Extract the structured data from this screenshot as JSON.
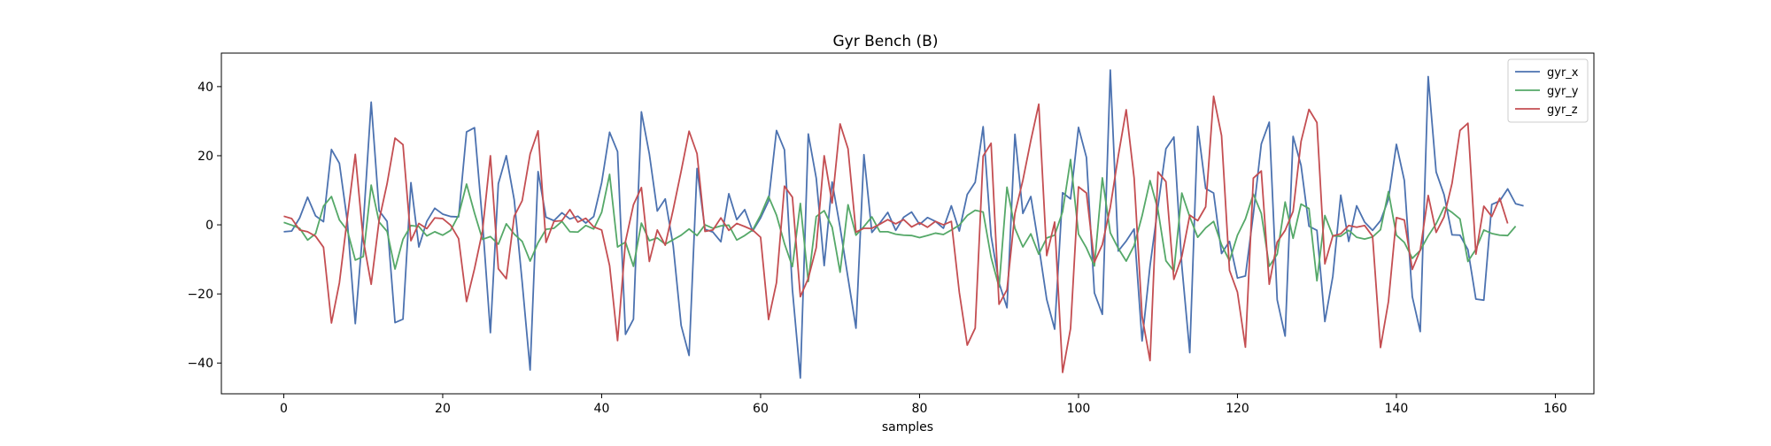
{
  "chart_data": {
    "type": "line",
    "title": "Gyr Bench (B)",
    "xlabel": "samples",
    "ylabel": "",
    "xlim": [
      -7.85,
      164.85
    ],
    "ylim": [
      -48.9,
      49.7
    ],
    "xticks": [
      0,
      20,
      40,
      60,
      80,
      100,
      120,
      140,
      160
    ],
    "yticks": [
      -40,
      -20,
      0,
      20,
      40
    ],
    "grid": false,
    "legend_position": "top-right",
    "series": [
      {
        "name": "gyr_x",
        "color": "#4c72b0",
        "values": [
          -2.0,
          -1.8,
          2.0,
          8.0,
          2.6,
          0.9,
          21.8,
          17.8,
          1.0,
          -28.6,
          -0.1,
          35.5,
          4.1,
          1.0,
          -28.3,
          -27.3,
          12.2,
          -6.4,
          1.0,
          4.8,
          3.1,
          2.4,
          2.3,
          26.9,
          28.1,
          1.0,
          -31.2,
          11.9,
          20.0,
          7.2,
          -16.6,
          -42.0,
          15.4,
          2.2,
          1.2,
          3.5,
          1.7,
          2.5,
          0.5,
          2.4,
          12.2,
          26.8,
          21.2,
          -31.7,
          -27.3,
          32.7,
          20.5,
          4.0,
          7.5,
          -6.0,
          -29.1,
          -37.8,
          16.3,
          -1.3,
          -2.1,
          -4.9,
          9.0,
          1.5,
          4.4,
          -1.8,
          2.0,
          6.9,
          27.3,
          21.7,
          -18.7,
          -44.3,
          26.3,
          13.5,
          -11.8,
          12.4,
          -0.7,
          -15.4,
          -29.9,
          20.3,
          -2.2,
          0.5,
          3.6,
          -1.6,
          2.2,
          3.7,
          0.1,
          2.1,
          1.0,
          -1.0,
          5.5,
          -1.8,
          8.8,
          12.3,
          28.4,
          -3.2,
          -16.8,
          -24.0,
          26.2,
          3.3,
          8.2,
          -6.1,
          -21.6,
          -30.2,
          9.3,
          7.5,
          28.2,
          19.5,
          -19.7,
          -25.9,
          44.8,
          -7.6,
          -4.7,
          -1.2,
          -33.6,
          -11.9,
          5.3,
          22.0,
          25.4,
          -11.8,
          -37.0,
          28.5,
          10.5,
          9.2,
          -8.3,
          -4.8,
          -15.4,
          -14.8,
          3.1,
          23.4,
          29.7,
          -21.7,
          -32.2,
          25.6,
          17.2,
          -0.4,
          -1.6,
          -28.0,
          -14.9,
          8.6,
          -4.8,
          5.5,
          0.8,
          -1.6,
          1.2,
          7.4,
          23.3,
          12.8,
          -20.8,
          -30.9,
          42.9,
          15.3,
          8.7,
          -2.9,
          -3.0,
          -7.2,
          -21.5,
          -21.8,
          5.9,
          6.9,
          10.4,
          6.1,
          5.5
        ]
      },
      {
        "name": "gyr_y",
        "color": "#55a868",
        "values": [
          0.7,
          -0.1,
          -1.0,
          -4.4,
          -2.6,
          5.4,
          8.2,
          1.4,
          -1.6,
          -10.2,
          -9.2,
          11.5,
          0.8,
          -1.9,
          -12.8,
          -4.2,
          -0.2,
          -0.5,
          -3.2,
          -2.0,
          -3.0,
          -1.6,
          2.8,
          11.8,
          3.4,
          -4.2,
          -3.4,
          -5.6,
          0.3,
          -2.7,
          -4.8,
          -10.5,
          -5.2,
          -1.3,
          -1.0,
          1.0,
          -2.0,
          -2.1,
          -0.2,
          -1.2,
          3.6,
          14.6,
          -6.4,
          -5.0,
          -12.0,
          0.5,
          -4.6,
          -3.8,
          -5.6,
          -4.3,
          -3.0,
          -1.2,
          -3.1,
          0.0,
          -1.0,
          -0.3,
          -0.1,
          -4.4,
          -3.1,
          -1.5,
          2.8,
          8.2,
          2.8,
          -5.4,
          -12.1,
          6.2,
          -16.4,
          2.4,
          4.1,
          -0.7,
          -13.7,
          5.8,
          -3.0,
          -0.5,
          2.3,
          -2.0,
          -2.0,
          -2.7,
          -3.0,
          -3.1,
          -3.7,
          -3.1,
          -2.4,
          -2.8,
          -1.5,
          -0.1,
          2.7,
          4.2,
          3.7,
          -9.4,
          -18.0,
          10.9,
          -1.0,
          -6.4,
          -2.6,
          -8.5,
          -3.8,
          -3.0,
          3.8,
          18.9,
          -2.7,
          -6.7,
          -11.9,
          13.6,
          -2.3,
          -6.8,
          -10.5,
          -6.0,
          2.6,
          12.8,
          4.3,
          -10.4,
          -13.4,
          9.2,
          2.3,
          -3.6,
          -0.9,
          1.0,
          -5.8,
          -10.4,
          -3.0,
          1.7,
          8.9,
          3.3,
          -12.0,
          -8.5,
          6.6,
          -3.9,
          6.0,
          4.7,
          -16.2,
          2.7,
          -3.2,
          -3.3,
          -1.6,
          -3.6,
          -4.1,
          -3.5,
          -1.4,
          9.6,
          -3.0,
          -5.1,
          -9.7,
          -7.4,
          -3.2,
          0.3,
          5.1,
          3.6,
          1.7,
          -10.6,
          -7.1,
          -1.5,
          -2.5,
          -3.0,
          -3.1,
          -0.4
        ]
      },
      {
        "name": "gyr_z",
        "color": "#c44e52",
        "values": [
          2.5,
          1.8,
          -1.5,
          -2.0,
          -3.3,
          -6.5,
          -28.4,
          -16.8,
          2.0,
          20.4,
          -4.3,
          -17.2,
          1.3,
          11.9,
          25.1,
          23.2,
          -4.6,
          0.4,
          -1.1,
          2.0,
          1.8,
          -0.1,
          -4.0,
          -22.2,
          -12.7,
          -1.9,
          20.0,
          -12.7,
          -15.6,
          2.5,
          7.0,
          20.5,
          27.2,
          -5.1,
          1.0,
          1.2,
          4.4,
          0.8,
          1.9,
          -0.6,
          -1.5,
          -11.8,
          -33.5,
          -4.8,
          5.8,
          10.8,
          -10.6,
          -1.5,
          -5.9,
          4.4,
          15.5,
          27.1,
          20.6,
          -1.9,
          -1.5,
          2.0,
          -1.6,
          0.4,
          -0.5,
          -1.5,
          -3.6,
          -27.4,
          -16.7,
          11.2,
          8.0,
          -20.8,
          -15.5,
          -6.6,
          20.0,
          6.3,
          29.2,
          22.0,
          -2.1,
          -1.0,
          -1.0,
          0.2,
          1.5,
          0.3,
          1.5,
          -0.6,
          0.6,
          -0.7,
          1.0,
          0.0,
          1.0,
          -19.5,
          -34.8,
          -29.9,
          19.9,
          23.6,
          -23.0,
          -18.8,
          3.3,
          12.9,
          24.4,
          34.9,
          -8.9,
          0.8,
          -42.7,
          -30.0,
          11.0,
          9.2,
          -10.8,
          -5.7,
          5.1,
          19.9,
          33.3,
          13.5,
          -26.5,
          -39.3,
          15.3,
          12.5,
          -15.8,
          -9.2,
          2.8,
          1.2,
          5.2,
          37.2,
          25.8,
          -13.2,
          -19.5,
          -35.4,
          13.5,
          15.6,
          -17.2,
          -5.0,
          -1.6,
          3.9,
          24.1,
          33.4,
          29.6,
          -11.3,
          -3.2,
          -2.6,
          -0.2,
          -0.7,
          -0.2,
          -3.3,
          -35.5,
          -22.2,
          2.1,
          1.4,
          -12.9,
          -7.3,
          8.5,
          -2.2,
          2.3,
          12.0,
          27.3,
          29.4,
          -8.5,
          5.4,
          2.4,
          7.7,
          0.4
        ]
      }
    ]
  }
}
